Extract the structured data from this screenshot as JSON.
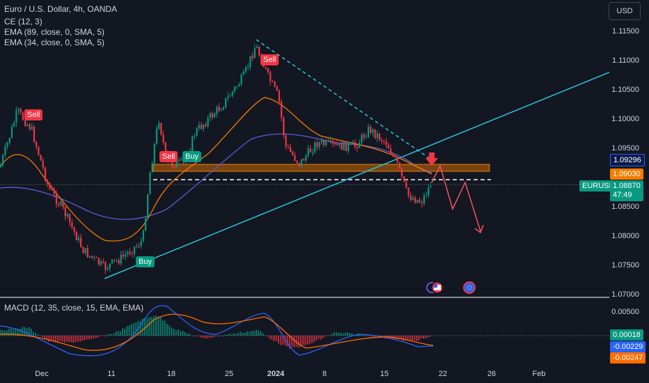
{
  "header": {
    "symbol_title": "Euro / U.S. Dollar, 4h, OANDA",
    "indicators": [
      "CE (12, 3)",
      "EMA (89, close, 0, SMA, 5)",
      "EMA (34, close, 0, SMA, 5)"
    ],
    "currency_button": "USD"
  },
  "price_axis": {
    "ticks": [
      "1.11500",
      "1.11000",
      "1.10500",
      "1.10000",
      "1.09500",
      "1.08500",
      "1.08000",
      "1.07500",
      "1.07000"
    ],
    "labels": {
      "upper_level": "1.09296",
      "lower_level": "1.09030",
      "current_symbol": "EURUSD",
      "current_price": "1.08870",
      "countdown": "47:49"
    }
  },
  "signals": {
    "sell": "Sell",
    "buy": "Buy"
  },
  "macd": {
    "title": "MACD (12, 35, close, 15, EMA, EMA)",
    "ticks": [
      "0.00500"
    ],
    "labels": {
      "histogram": "0.00018",
      "macd_line": "-0.00229",
      "signal_line": "-0.00247"
    }
  },
  "time_axis": {
    "labels": [
      "Dec",
      "11",
      "18",
      "25",
      "2024",
      "8",
      "15",
      "22",
      "26",
      "Feb"
    ]
  },
  "colors": {
    "background": "#131722",
    "up": "#089981",
    "down": "#f23645",
    "ema_fast": "#f57c00",
    "ema_slow": "#5b5bd6",
    "trendline": "#26c6da",
    "zone": "#f57c00",
    "projection": "#f7525f",
    "macd_line": "#2962ff",
    "signal_line": "#ff6d00"
  },
  "icons": [
    "arrow-down-icon",
    "us-flag-event-icon",
    "eu-flag-event-icon",
    "event-circle-icon"
  ]
}
